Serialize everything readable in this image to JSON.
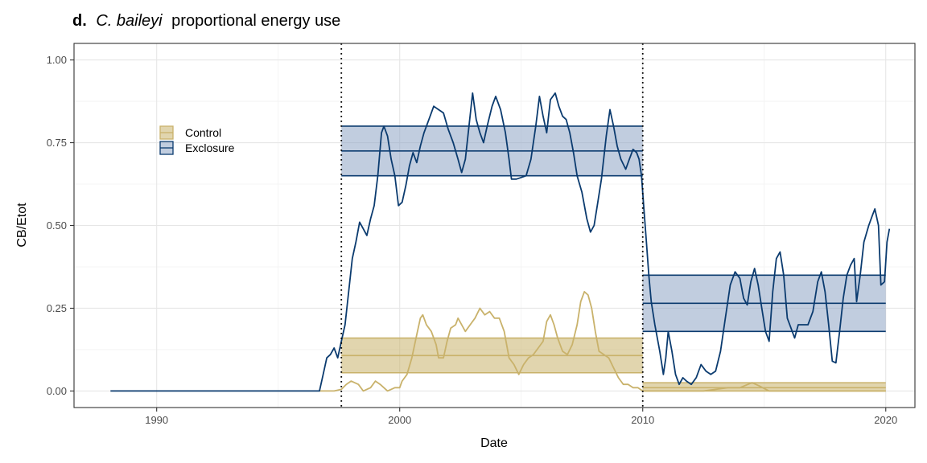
{
  "chart_data": {
    "type": "line",
    "title_prefix": "d.",
    "title_species": "C. baileyi",
    "title_rest": "proportional energy use",
    "xlabel": "Date",
    "ylabel": "CB/Etot",
    "xlim": [
      1986.6,
      2021.2
    ],
    "ylim": [
      -0.05,
      1.05
    ],
    "x_ticks": [
      1990,
      2000,
      2010,
      2020
    ],
    "x_tick_labels": [
      "1990",
      "2000",
      "2010",
      "2020"
    ],
    "y_ticks": [
      0,
      0.25,
      0.5,
      0.75,
      1.0
    ],
    "y_tick_labels": [
      "0.00",
      "0.25",
      "0.50",
      "0.75",
      "1.00"
    ],
    "grid": true,
    "legend_position": "top-left",
    "vlines": [
      1997.6,
      2010.0
    ],
    "series": [
      {
        "name": "Control",
        "color": "#c9b26b",
        "fill": "#c9b26b",
        "points": [
          [
            1996.7,
            0.0
          ],
          [
            1997.3,
            0.0
          ],
          [
            1997.6,
            0.005
          ],
          [
            1997.8,
            0.02
          ],
          [
            1998.0,
            0.03
          ],
          [
            1998.3,
            0.02
          ],
          [
            1998.5,
            0.0
          ],
          [
            1998.8,
            0.01
          ],
          [
            1999.0,
            0.03
          ],
          [
            1999.2,
            0.02
          ],
          [
            1999.5,
            0.0
          ],
          [
            1999.8,
            0.01
          ],
          [
            2000.0,
            0.01
          ],
          [
            2000.1,
            0.03
          ],
          [
            2000.3,
            0.05
          ],
          [
            2000.5,
            0.1
          ],
          [
            2000.7,
            0.17
          ],
          [
            2000.85,
            0.22
          ],
          [
            2000.95,
            0.23
          ],
          [
            2001.1,
            0.2
          ],
          [
            2001.3,
            0.18
          ],
          [
            2001.5,
            0.14
          ],
          [
            2001.6,
            0.1
          ],
          [
            2001.8,
            0.1
          ],
          [
            2001.95,
            0.15
          ],
          [
            2002.1,
            0.19
          ],
          [
            2002.3,
            0.2
          ],
          [
            2002.4,
            0.22
          ],
          [
            2002.55,
            0.2
          ],
          [
            2002.7,
            0.18
          ],
          [
            2002.9,
            0.2
          ],
          [
            2003.1,
            0.22
          ],
          [
            2003.3,
            0.25
          ],
          [
            2003.5,
            0.23
          ],
          [
            2003.7,
            0.24
          ],
          [
            2003.9,
            0.22
          ],
          [
            2004.1,
            0.22
          ],
          [
            2004.3,
            0.18
          ],
          [
            2004.5,
            0.1
          ],
          [
            2004.7,
            0.08
          ],
          [
            2004.9,
            0.05
          ],
          [
            2005.1,
            0.08
          ],
          [
            2005.3,
            0.1
          ],
          [
            2005.5,
            0.11
          ],
          [
            2005.7,
            0.13
          ],
          [
            2005.9,
            0.15
          ],
          [
            2006.05,
            0.21
          ],
          [
            2006.2,
            0.23
          ],
          [
            2006.35,
            0.2
          ],
          [
            2006.5,
            0.16
          ],
          [
            2006.7,
            0.12
          ],
          [
            2006.9,
            0.11
          ],
          [
            2007.1,
            0.14
          ],
          [
            2007.3,
            0.2
          ],
          [
            2007.45,
            0.27
          ],
          [
            2007.6,
            0.3
          ],
          [
            2007.75,
            0.29
          ],
          [
            2007.9,
            0.25
          ],
          [
            2008.05,
            0.18
          ],
          [
            2008.2,
            0.12
          ],
          [
            2008.4,
            0.11
          ],
          [
            2008.6,
            0.1
          ],
          [
            2008.8,
            0.07
          ],
          [
            2009.0,
            0.04
          ],
          [
            2009.2,
            0.02
          ],
          [
            2009.4,
            0.02
          ],
          [
            2009.6,
            0.01
          ],
          [
            2009.8,
            0.01
          ],
          [
            2010.0,
            0.0
          ],
          [
            2010.5,
            0.0
          ],
          [
            2011.0,
            0.0
          ],
          [
            2011.5,
            0.0
          ],
          [
            2012.0,
            0.0
          ],
          [
            2012.5,
            0.0
          ],
          [
            2013.0,
            0.005
          ],
          [
            2013.5,
            0.01
          ],
          [
            2014.0,
            0.01
          ],
          [
            2014.5,
            0.025
          ],
          [
            2014.8,
            0.015
          ],
          [
            2015.2,
            0.0
          ],
          [
            2016.0,
            0.0
          ],
          [
            2017.0,
            0.0
          ],
          [
            2018.0,
            0.0
          ],
          [
            2019.0,
            0.0
          ],
          [
            2020.0,
            0.0
          ]
        ],
        "segments": [
          {
            "x_start": 1997.6,
            "x_end": 2010.0,
            "mean": 0.107,
            "lower": 0.055,
            "upper": 0.16
          },
          {
            "x_start": 2010.0,
            "x_end": 2020.0,
            "mean": 0.01,
            "lower": 0.0,
            "upper": 0.025
          }
        ]
      },
      {
        "name": "Exclosure",
        "color": "#0b3b6f",
        "fill": "#8ea4c4",
        "points": [
          [
            1988.1,
            0.0
          ],
          [
            1996.7,
            0.0
          ],
          [
            1996.85,
            0.05
          ],
          [
            1997.0,
            0.1
          ],
          [
            1997.15,
            0.11
          ],
          [
            1997.3,
            0.13
          ],
          [
            1997.45,
            0.1
          ],
          [
            1997.6,
            0.15
          ],
          [
            1997.75,
            0.2
          ],
          [
            1997.9,
            0.3
          ],
          [
            1998.05,
            0.4
          ],
          [
            1998.2,
            0.45
          ],
          [
            1998.35,
            0.51
          ],
          [
            1998.5,
            0.49
          ],
          [
            1998.65,
            0.47
          ],
          [
            1998.8,
            0.52
          ],
          [
            1998.95,
            0.56
          ],
          [
            1999.1,
            0.65
          ],
          [
            1999.25,
            0.78
          ],
          [
            1999.35,
            0.8
          ],
          [
            1999.5,
            0.77
          ],
          [
            1999.65,
            0.7
          ],
          [
            1999.8,
            0.65
          ],
          [
            1999.95,
            0.56
          ],
          [
            2000.1,
            0.57
          ],
          [
            2000.25,
            0.62
          ],
          [
            2000.4,
            0.68
          ],
          [
            2000.55,
            0.72
          ],
          [
            2000.7,
            0.69
          ],
          [
            2000.85,
            0.74
          ],
          [
            2001.0,
            0.78
          ],
          [
            2001.2,
            0.82
          ],
          [
            2001.4,
            0.86
          ],
          [
            2001.6,
            0.85
          ],
          [
            2001.8,
            0.84
          ],
          [
            2002.0,
            0.79
          ],
          [
            2002.2,
            0.75
          ],
          [
            2002.4,
            0.7
          ],
          [
            2002.55,
            0.66
          ],
          [
            2002.7,
            0.7
          ],
          [
            2002.85,
            0.8
          ],
          [
            2003.0,
            0.9
          ],
          [
            2003.15,
            0.82
          ],
          [
            2003.3,
            0.78
          ],
          [
            2003.45,
            0.75
          ],
          [
            2003.6,
            0.8
          ],
          [
            2003.8,
            0.86
          ],
          [
            2003.95,
            0.89
          ],
          [
            2004.15,
            0.85
          ],
          [
            2004.35,
            0.78
          ],
          [
            2004.5,
            0.7
          ],
          [
            2004.6,
            0.64
          ],
          [
            2004.8,
            0.64
          ],
          [
            2005.0,
            0.645
          ],
          [
            2005.2,
            0.65
          ],
          [
            2005.4,
            0.7
          ],
          [
            2005.6,
            0.8
          ],
          [
            2005.75,
            0.89
          ],
          [
            2005.9,
            0.83
          ],
          [
            2006.05,
            0.78
          ],
          [
            2006.2,
            0.88
          ],
          [
            2006.4,
            0.9
          ],
          [
            2006.55,
            0.86
          ],
          [
            2006.7,
            0.83
          ],
          [
            2006.85,
            0.82
          ],
          [
            2007.0,
            0.78
          ],
          [
            2007.15,
            0.72
          ],
          [
            2007.3,
            0.65
          ],
          [
            2007.5,
            0.6
          ],
          [
            2007.7,
            0.52
          ],
          [
            2007.85,
            0.48
          ],
          [
            2008.0,
            0.5
          ],
          [
            2008.15,
            0.57
          ],
          [
            2008.3,
            0.64
          ],
          [
            2008.5,
            0.77
          ],
          [
            2008.65,
            0.85
          ],
          [
            2008.8,
            0.8
          ],
          [
            2008.95,
            0.74
          ],
          [
            2009.1,
            0.7
          ],
          [
            2009.3,
            0.67
          ],
          [
            2009.45,
            0.7
          ],
          [
            2009.6,
            0.73
          ],
          [
            2009.75,
            0.72
          ],
          [
            2009.85,
            0.7
          ],
          [
            2009.95,
            0.65
          ],
          [
            2010.05,
            0.55
          ],
          [
            2010.15,
            0.45
          ],
          [
            2010.25,
            0.35
          ],
          [
            2010.35,
            0.27
          ],
          [
            2010.5,
            0.2
          ],
          [
            2010.7,
            0.12
          ],
          [
            2010.85,
            0.05
          ],
          [
            2010.95,
            0.1
          ],
          [
            2011.05,
            0.18
          ],
          [
            2011.2,
            0.12
          ],
          [
            2011.35,
            0.05
          ],
          [
            2011.5,
            0.02
          ],
          [
            2011.65,
            0.04
          ],
          [
            2011.8,
            0.03
          ],
          [
            2012.0,
            0.02
          ],
          [
            2012.2,
            0.04
          ],
          [
            2012.4,
            0.08
          ],
          [
            2012.6,
            0.06
          ],
          [
            2012.8,
            0.05
          ],
          [
            2013.0,
            0.06
          ],
          [
            2013.2,
            0.12
          ],
          [
            2013.4,
            0.22
          ],
          [
            2013.6,
            0.32
          ],
          [
            2013.8,
            0.36
          ],
          [
            2014.0,
            0.34
          ],
          [
            2014.15,
            0.28
          ],
          [
            2014.3,
            0.26
          ],
          [
            2014.45,
            0.33
          ],
          [
            2014.6,
            0.37
          ],
          [
            2014.75,
            0.32
          ],
          [
            2014.9,
            0.25
          ],
          [
            2015.05,
            0.18
          ],
          [
            2015.2,
            0.15
          ],
          [
            2015.35,
            0.3
          ],
          [
            2015.5,
            0.4
          ],
          [
            2015.65,
            0.42
          ],
          [
            2015.8,
            0.35
          ],
          [
            2015.95,
            0.22
          ],
          [
            2016.1,
            0.19
          ],
          [
            2016.25,
            0.16
          ],
          [
            2016.4,
            0.2
          ],
          [
            2016.6,
            0.2
          ],
          [
            2016.8,
            0.2
          ],
          [
            2017.0,
            0.24
          ],
          [
            2017.2,
            0.33
          ],
          [
            2017.35,
            0.36
          ],
          [
            2017.5,
            0.3
          ],
          [
            2017.65,
            0.2
          ],
          [
            2017.8,
            0.09
          ],
          [
            2017.95,
            0.085
          ],
          [
            2018.1,
            0.18
          ],
          [
            2018.25,
            0.28
          ],
          [
            2018.4,
            0.35
          ],
          [
            2018.55,
            0.38
          ],
          [
            2018.7,
            0.4
          ],
          [
            2018.8,
            0.27
          ],
          [
            2018.95,
            0.35
          ],
          [
            2019.1,
            0.45
          ],
          [
            2019.3,
            0.5
          ],
          [
            2019.45,
            0.53
          ],
          [
            2019.55,
            0.55
          ],
          [
            2019.7,
            0.5
          ],
          [
            2019.8,
            0.32
          ],
          [
            2019.95,
            0.33
          ],
          [
            2020.05,
            0.45
          ],
          [
            2020.15,
            0.49
          ]
        ],
        "segments": [
          {
            "x_start": 1997.6,
            "x_end": 2010.0,
            "mean": 0.725,
            "lower": 0.65,
            "upper": 0.8
          },
          {
            "x_start": 2010.0,
            "x_end": 2020.0,
            "mean": 0.265,
            "lower": 0.18,
            "upper": 0.35
          }
        ]
      }
    ]
  }
}
